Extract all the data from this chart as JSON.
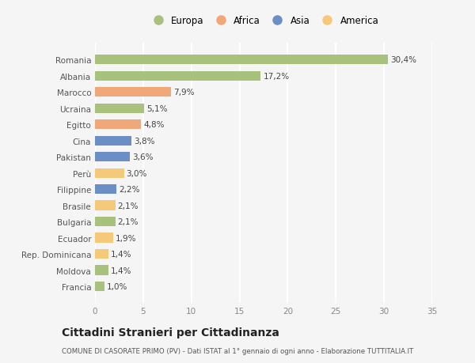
{
  "categories": [
    "Francia",
    "Moldova",
    "Rep. Dominicana",
    "Ecuador",
    "Bulgaria",
    "Brasile",
    "Filippine",
    "Perù",
    "Pakistan",
    "Cina",
    "Egitto",
    "Ucraina",
    "Marocco",
    "Albania",
    "Romania"
  ],
  "values": [
    1.0,
    1.4,
    1.4,
    1.9,
    2.1,
    2.1,
    2.2,
    3.0,
    3.6,
    3.8,
    4.8,
    5.1,
    7.9,
    17.2,
    30.4
  ],
  "labels": [
    "1,0%",
    "1,4%",
    "1,4%",
    "1,9%",
    "2,1%",
    "2,1%",
    "2,2%",
    "3,0%",
    "3,6%",
    "3,8%",
    "4,8%",
    "5,1%",
    "7,9%",
    "17,2%",
    "30,4%"
  ],
  "colors": [
    "#a8c17c",
    "#a8c17c",
    "#f5c97a",
    "#f5c97a",
    "#a8c17c",
    "#f5c97a",
    "#6b8ec4",
    "#f5c97a",
    "#6b8ec4",
    "#6b8ec4",
    "#f0a87a",
    "#a8c17c",
    "#f0a87a",
    "#a8c17c",
    "#a8c17c"
  ],
  "legend": [
    {
      "label": "Europa",
      "color": "#a8c17c"
    },
    {
      "label": "Africa",
      "color": "#f0a87a"
    },
    {
      "label": "Asia",
      "color": "#6b8ec4"
    },
    {
      "label": "America",
      "color": "#f5c97a"
    }
  ],
  "xlim": [
    0,
    35
  ],
  "xticks": [
    0,
    5,
    10,
    15,
    20,
    25,
    30,
    35
  ],
  "title": "Cittadini Stranieri per Cittadinanza",
  "subtitle": "COMUNE DI CASORATE PRIMO (PV) - Dati ISTAT al 1° gennaio di ogni anno - Elaborazione TUTTITALIA.IT",
  "bg_color": "#f5f5f5",
  "bar_height": 0.6,
  "label_fontsize": 7.5,
  "ytick_fontsize": 7.5,
  "xtick_fontsize": 7.5,
  "legend_fontsize": 8.5,
  "title_fontsize": 10,
  "subtitle_fontsize": 6.2
}
